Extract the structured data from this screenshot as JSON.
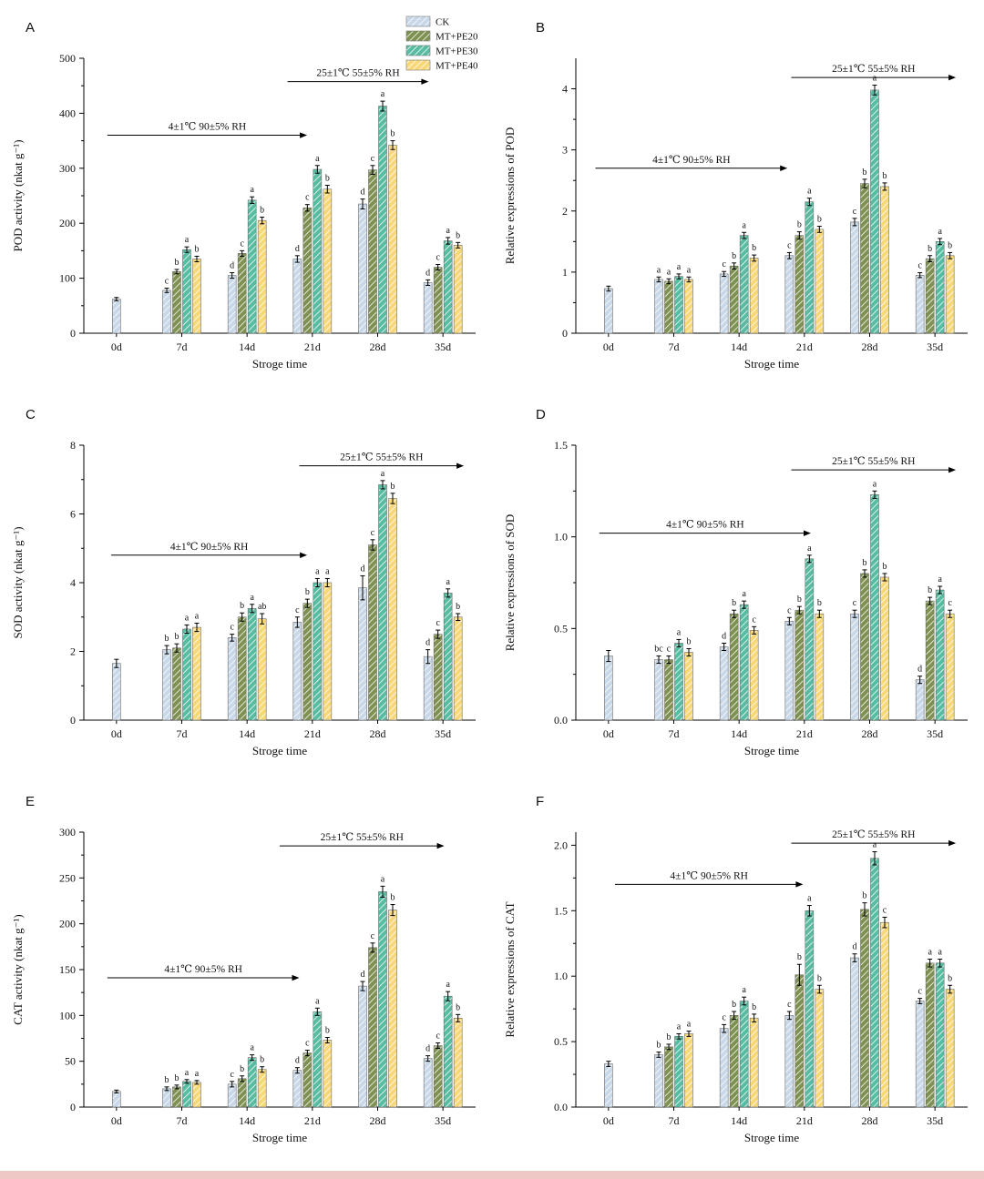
{
  "figure": {
    "legend": {
      "items": [
        {
          "label": "CK",
          "color": "#c9d8e8"
        },
        {
          "label": "MT+PE20",
          "color": "#7e9150"
        },
        {
          "label": "MT+PE30",
          "color": "#57bca2"
        },
        {
          "label": "MT+PE40",
          "color": "#f8d876"
        }
      ]
    },
    "hatch_color": "#ffffff",
    "bottom_strip_color": "#eec8c4"
  },
  "chart_data": [
    {
      "type": "bar",
      "panel": "A",
      "ylabel": "POD activity (nkat g⁻¹)",
      "xlabel": "Stroge time",
      "categories": [
        "0d",
        "7d",
        "14d",
        "21d",
        "28d",
        "35d"
      ],
      "ymax": 500,
      "yticks": [
        [
          0,
          "0"
        ],
        [
          100,
          "100"
        ],
        [
          200,
          "200"
        ],
        [
          300,
          "300"
        ],
        [
          400,
          "400"
        ],
        [
          500,
          "500"
        ]
      ],
      "series": [
        {
          "name": "CK",
          "values": [
            62,
            78,
            105,
            135,
            235,
            92
          ],
          "errors": [
            3,
            4,
            5,
            6,
            9,
            5
          ],
          "letters": [
            "",
            "c",
            "d",
            "d",
            "d",
            "d"
          ]
        },
        {
          "name": "MT+PE20",
          "values": [
            null,
            112,
            145,
            228,
            297,
            120
          ],
          "errors": [
            0,
            4,
            5,
            6,
            8,
            5
          ],
          "letters": [
            "",
            "b",
            "c",
            "c",
            "c",
            "c"
          ]
        },
        {
          "name": "MT+PE30",
          "values": [
            null,
            152,
            242,
            298,
            413,
            168
          ],
          "errors": [
            0,
            5,
            6,
            7,
            9,
            6
          ],
          "letters": [
            "",
            "a",
            "a",
            "a",
            "a",
            "a"
          ]
        },
        {
          "name": "MT+PE40",
          "values": [
            null,
            135,
            205,
            262,
            342,
            160
          ],
          "errors": [
            0,
            5,
            6,
            7,
            8,
            5
          ],
          "letters": [
            "",
            "b",
            "b",
            "b",
            "b",
            "b"
          ]
        }
      ],
      "annotations": [
        {
          "text": "4±1℃  90±5% RH",
          "x0": 0.06,
          "x1": 0.57,
          "y": 0.72
        },
        {
          "text": "25±1℃  55±5% RH",
          "x0": 0.52,
          "x1": 0.88,
          "y": 0.915
        }
      ]
    },
    {
      "type": "bar",
      "panel": "B",
      "ylabel": "Relative expressions of POD",
      "xlabel": "Stroge time",
      "categories": [
        "0d",
        "7d",
        "14d",
        "21d",
        "28d",
        "35d"
      ],
      "ymax": 4.5,
      "yticks": [
        [
          0,
          "0"
        ],
        [
          1,
          "1"
        ],
        [
          2,
          "2"
        ],
        [
          3,
          "3"
        ],
        [
          4,
          "4"
        ]
      ],
      "series": [
        {
          "name": "CK",
          "values": [
            0.73,
            0.88,
            0.97,
            1.27,
            1.82,
            0.95
          ],
          "errors": [
            0.04,
            0.04,
            0.04,
            0.05,
            0.06,
            0.04
          ],
          "letters": [
            "",
            "a",
            "c",
            "c",
            "c",
            "c"
          ]
        },
        {
          "name": "MT+PE20",
          "values": [
            null,
            0.85,
            1.1,
            1.6,
            2.45,
            1.22
          ],
          "errors": [
            0,
            0.04,
            0.05,
            0.06,
            0.07,
            0.05
          ],
          "letters": [
            "",
            "a",
            "b",
            "b",
            "b",
            "b"
          ]
        },
        {
          "name": "MT+PE30",
          "values": [
            null,
            0.93,
            1.6,
            2.15,
            3.98,
            1.5
          ],
          "errors": [
            0,
            0.04,
            0.05,
            0.06,
            0.08,
            0.05
          ],
          "letters": [
            "",
            "a",
            "a",
            "a",
            "a",
            "a"
          ]
        },
        {
          "name": "MT+PE40",
          "values": [
            null,
            0.88,
            1.23,
            1.7,
            2.4,
            1.27
          ],
          "errors": [
            0,
            0.04,
            0.05,
            0.05,
            0.06,
            0.05
          ],
          "letters": [
            "",
            "a",
            "b",
            "b",
            "b",
            "b"
          ]
        }
      ],
      "annotations": [
        {
          "text": "4±1℃  90±5% RH",
          "x0": 0.05,
          "x1": 0.54,
          "y": 0.6
        },
        {
          "text": "25±1℃  55±5% RH",
          "x0": 0.55,
          "x1": 0.97,
          "y": 0.93
        }
      ]
    },
    {
      "type": "bar",
      "panel": "C",
      "ylabel": "SOD activity (nkat g⁻¹)",
      "xlabel": "Stroge time",
      "categories": [
        "0d",
        "7d",
        "14d",
        "21d",
        "28d",
        "35d"
      ],
      "ymax": 8,
      "yticks": [
        [
          0,
          "0"
        ],
        [
          2,
          "2"
        ],
        [
          4,
          "4"
        ],
        [
          6,
          "6"
        ],
        [
          8,
          "8"
        ]
      ],
      "series": [
        {
          "name": "CK",
          "values": [
            1.65,
            2.05,
            2.4,
            2.85,
            3.85,
            1.85
          ],
          "errors": [
            0.12,
            0.12,
            0.1,
            0.15,
            0.35,
            0.2
          ],
          "letters": [
            "",
            "b",
            "c",
            "c",
            "d",
            "d"
          ]
        },
        {
          "name": "MT+PE20",
          "values": [
            null,
            2.1,
            3.0,
            3.4,
            5.1,
            2.5
          ],
          "errors": [
            0,
            0.12,
            0.12,
            0.12,
            0.15,
            0.12
          ],
          "letters": [
            "",
            "b",
            "b",
            "b",
            "c",
            "c"
          ]
        },
        {
          "name": "MT+PE30",
          "values": [
            null,
            2.65,
            3.25,
            4.0,
            6.85,
            3.7
          ],
          "errors": [
            0,
            0.12,
            0.12,
            0.12,
            0.12,
            0.12
          ],
          "letters": [
            "",
            "a",
            "a",
            "a",
            "a",
            "a"
          ]
        },
        {
          "name": "MT+PE40",
          "values": [
            null,
            2.7,
            2.95,
            4.0,
            6.45,
            3.0
          ],
          "errors": [
            0,
            0.12,
            0.15,
            0.12,
            0.15,
            0.1
          ],
          "letters": [
            "",
            "a",
            "ab",
            "a",
            "b",
            "b"
          ]
        }
      ],
      "annotations": [
        {
          "text": "4±1℃  90±5% RH",
          "x0": 0.07,
          "x1": 0.57,
          "y": 0.6
        },
        {
          "text": "25±1℃  55±5% RH",
          "x0": 0.55,
          "x1": 0.97,
          "y": 0.925
        }
      ]
    },
    {
      "type": "bar",
      "panel": "D",
      "ylabel": "Relative expressions of SOD",
      "xlabel": "Stroge time",
      "categories": [
        "0d",
        "7d",
        "14d",
        "21d",
        "28d",
        "35d"
      ],
      "ymax": 1.5,
      "yticks": [
        [
          0,
          "0.0"
        ],
        [
          0.5,
          "0.5"
        ],
        [
          1.0,
          "1.0"
        ],
        [
          1.5,
          "1.5"
        ]
      ],
      "series": [
        {
          "name": "CK",
          "values": [
            0.35,
            0.33,
            0.4,
            0.54,
            0.58,
            0.22
          ],
          "errors": [
            0.03,
            0.02,
            0.02,
            0.02,
            0.02,
            0.02
          ],
          "letters": [
            "",
            "bc",
            "d",
            "c",
            "c",
            "d"
          ]
        },
        {
          "name": "MT+PE20",
          "values": [
            null,
            0.33,
            0.58,
            0.6,
            0.8,
            0.65
          ],
          "errors": [
            0,
            0.02,
            0.02,
            0.02,
            0.02,
            0.02
          ],
          "letters": [
            "",
            "c",
            "b",
            "b",
            "b",
            "b"
          ]
        },
        {
          "name": "MT+PE30",
          "values": [
            null,
            0.42,
            0.63,
            0.88,
            1.23,
            0.71
          ],
          "errors": [
            0,
            0.02,
            0.02,
            0.02,
            0.02,
            0.02
          ],
          "letters": [
            "",
            "a",
            "a",
            "a",
            "a",
            "a"
          ]
        },
        {
          "name": "MT+PE40",
          "values": [
            null,
            0.37,
            0.49,
            0.58,
            0.78,
            0.58
          ],
          "errors": [
            0,
            0.02,
            0.02,
            0.02,
            0.02,
            0.02
          ],
          "letters": [
            "",
            "b",
            "c",
            "b",
            "b",
            "c"
          ]
        }
      ],
      "annotations": [
        {
          "text": "4±1℃  90±5% RH",
          "x0": 0.06,
          "x1": 0.6,
          "y": 0.68
        },
        {
          "text": "25±1℃  55±5% RH",
          "x0": 0.55,
          "x1": 0.97,
          "y": 0.91
        }
      ]
    },
    {
      "type": "bar",
      "panel": "E",
      "ylabel": "CAT activity (nkat g⁻¹)",
      "xlabel": "Stroge time",
      "categories": [
        "0d",
        "7d",
        "14d",
        "21d",
        "28d",
        "35d"
      ],
      "ymax": 300,
      "yticks": [
        [
          0,
          "0"
        ],
        [
          50,
          "50"
        ],
        [
          100,
          "100"
        ],
        [
          150,
          "150"
        ],
        [
          200,
          "200"
        ],
        [
          250,
          "250"
        ],
        [
          300,
          "300"
        ]
      ],
      "series": [
        {
          "name": "CK",
          "values": [
            17,
            20,
            25,
            40,
            132,
            53
          ],
          "errors": [
            1.5,
            2,
            3,
            3,
            5,
            3
          ],
          "letters": [
            "",
            "b",
            "c",
            "d",
            "d",
            "d"
          ]
        },
        {
          "name": "MT+PE20",
          "values": [
            null,
            22,
            31,
            59,
            174,
            67
          ],
          "errors": [
            0,
            2,
            3,
            3,
            5,
            3
          ],
          "letters": [
            "",
            "b",
            "b",
            "c",
            "c",
            "c"
          ]
        },
        {
          "name": "MT+PE30",
          "values": [
            null,
            28,
            54,
            104,
            235,
            121
          ],
          "errors": [
            0,
            2,
            3,
            4,
            6,
            5
          ],
          "letters": [
            "",
            "a",
            "a",
            "a",
            "a",
            "a"
          ]
        },
        {
          "name": "MT+PE40",
          "values": [
            null,
            27,
            41,
            73,
            215,
            97
          ],
          "errors": [
            0,
            2,
            3,
            3,
            6,
            4
          ],
          "letters": [
            "",
            "a",
            "b",
            "b",
            "b",
            "b"
          ]
        }
      ],
      "annotations": [
        {
          "text": "4±1℃  90±5% RH",
          "x0": 0.06,
          "x1": 0.55,
          "y": 0.47
        },
        {
          "text": "25±1℃  55±5% RH",
          "x0": 0.5,
          "x1": 0.92,
          "y": 0.95
        }
      ]
    },
    {
      "type": "bar",
      "panel": "F",
      "ylabel": "Relative expressions of CAT",
      "xlabel": "Stroge time",
      "categories": [
        "0d",
        "7d",
        "14d",
        "21d",
        "28d",
        "35d"
      ],
      "ymax": 2.1,
      "yticks": [
        [
          0,
          "0.0"
        ],
        [
          0.5,
          "0.5"
        ],
        [
          1.0,
          "1.0"
        ],
        [
          1.5,
          "1.5"
        ],
        [
          2.0,
          "2.0"
        ]
      ],
      "series": [
        {
          "name": "CK",
          "values": [
            0.33,
            0.4,
            0.6,
            0.7,
            1.14,
            0.81
          ],
          "errors": [
            0.02,
            0.02,
            0.03,
            0.03,
            0.03,
            0.02
          ],
          "letters": [
            "",
            "b",
            "c",
            "c",
            "d",
            "c"
          ]
        },
        {
          "name": "MT+PE20",
          "values": [
            null,
            0.46,
            0.7,
            1.01,
            1.51,
            1.1
          ],
          "errors": [
            0,
            0.02,
            0.03,
            0.08,
            0.05,
            0.03
          ],
          "letters": [
            "",
            "b",
            "b",
            "b",
            "b",
            "a"
          ]
        },
        {
          "name": "MT+PE30",
          "values": [
            null,
            0.54,
            0.81,
            1.5,
            1.9,
            1.1
          ],
          "errors": [
            0,
            0.02,
            0.03,
            0.04,
            0.05,
            0.03
          ],
          "letters": [
            "",
            "a",
            "a",
            "a",
            "a",
            "a"
          ]
        },
        {
          "name": "MT+PE40",
          "values": [
            null,
            0.56,
            0.68,
            0.9,
            1.41,
            0.9
          ],
          "errors": [
            0,
            0.02,
            0.03,
            0.03,
            0.04,
            0.03
          ],
          "letters": [
            "",
            "a",
            "b",
            "b",
            "c",
            "b"
          ]
        }
      ],
      "annotations": [
        {
          "text": "4±1℃  90±5% RH",
          "x0": 0.1,
          "x1": 0.58,
          "y": 0.81
        },
        {
          "text": "25±1℃  55±5% RH",
          "x0": 0.55,
          "x1": 0.97,
          "y": 0.96
        }
      ]
    }
  ]
}
